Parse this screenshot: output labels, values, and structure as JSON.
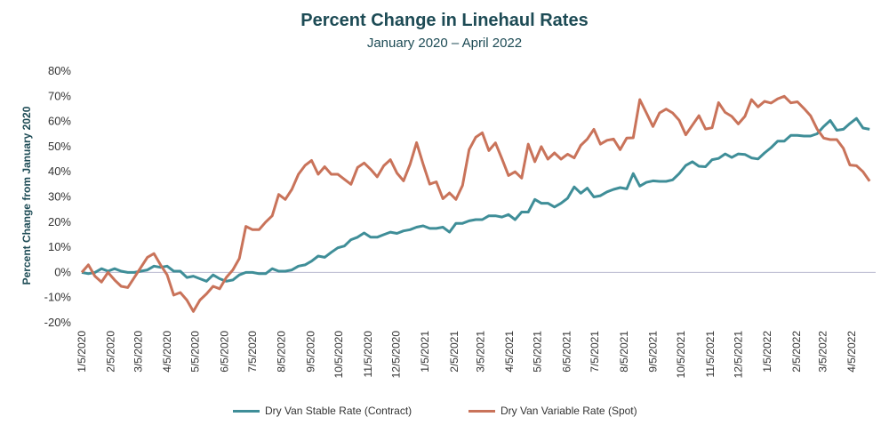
{
  "chart_data": {
    "type": "line",
    "title": "Percent Change in Linehaul Rates",
    "subtitle": "January 2020 – April 2022",
    "xlabel": "",
    "ylabel": "Percent Change from January 2020",
    "ylim": [
      -20,
      80
    ],
    "yticks": [
      "80%",
      "70%",
      "60%",
      "50%",
      "40%",
      "30%",
      "20%",
      "10%",
      "0%",
      "-10%",
      "-20%"
    ],
    "ytick_values": [
      80,
      70,
      60,
      50,
      40,
      30,
      20,
      10,
      0,
      -10,
      -20
    ],
    "xticks": [
      "1/5/2020",
      "2/5/2020",
      "3/5/2020",
      "4/5/2020",
      "5/5/2020",
      "6/5/2020",
      "7/5/2020",
      "8/5/2020",
      "9/5/2020",
      "10/5/2020",
      "11/5/2020",
      "12/5/2020",
      "1/5/2021",
      "2/5/2021",
      "3/5/2021",
      "4/5/2021",
      "5/5/2021",
      "6/5/2021",
      "7/5/2021",
      "8/5/2021",
      "9/5/2021",
      "10/5/2021",
      "11/5/2021",
      "12/5/2021",
      "1/5/2022",
      "2/5/2022",
      "3/5/2022",
      "4/5/2022"
    ],
    "grid": false,
    "zero_line": true,
    "legend_position": "bottom",
    "x": [
      "2020-01-05",
      "2020-01-12",
      "2020-01-19",
      "2020-01-26",
      "2020-02-02",
      "2020-02-09",
      "2020-02-16",
      "2020-02-23",
      "2020-03-01",
      "2020-03-08",
      "2020-03-15",
      "2020-03-22",
      "2020-03-29",
      "2020-04-05",
      "2020-04-12",
      "2020-04-19",
      "2020-04-26",
      "2020-05-03",
      "2020-05-10",
      "2020-05-17",
      "2020-05-24",
      "2020-05-31",
      "2020-06-07",
      "2020-06-14",
      "2020-06-21",
      "2020-06-28",
      "2020-07-05",
      "2020-07-12",
      "2020-07-19",
      "2020-07-26",
      "2020-08-02",
      "2020-08-09",
      "2020-08-16",
      "2020-08-23",
      "2020-08-30",
      "2020-09-06",
      "2020-09-13",
      "2020-09-20",
      "2020-09-27",
      "2020-10-04",
      "2020-10-11",
      "2020-10-18",
      "2020-10-25",
      "2020-11-01",
      "2020-11-08",
      "2020-11-15",
      "2020-11-22",
      "2020-11-29",
      "2020-12-06",
      "2020-12-13",
      "2020-12-20",
      "2020-12-27",
      "2021-01-03",
      "2021-01-10",
      "2021-01-17",
      "2021-01-24",
      "2021-01-31",
      "2021-02-07",
      "2021-02-14",
      "2021-02-21",
      "2021-02-28",
      "2021-03-07",
      "2021-03-14",
      "2021-03-21",
      "2021-03-28",
      "2021-04-04",
      "2021-04-11",
      "2021-04-18",
      "2021-04-25",
      "2021-05-02",
      "2021-05-09",
      "2021-05-16",
      "2021-05-23",
      "2021-05-30",
      "2021-06-06",
      "2021-06-13",
      "2021-06-20",
      "2021-06-27",
      "2021-07-04",
      "2021-07-11",
      "2021-07-18",
      "2021-07-25",
      "2021-08-01",
      "2021-08-08",
      "2021-08-15",
      "2021-08-22",
      "2021-08-29",
      "2021-09-05",
      "2021-09-12",
      "2021-09-19",
      "2021-09-26",
      "2021-10-03",
      "2021-10-10",
      "2021-10-17",
      "2021-10-24",
      "2021-10-31",
      "2021-11-07",
      "2021-11-14",
      "2021-11-21",
      "2021-11-28",
      "2021-12-05",
      "2021-12-12",
      "2021-12-19",
      "2021-12-26",
      "2022-01-02",
      "2022-01-09",
      "2022-01-16",
      "2022-01-23",
      "2022-01-30",
      "2022-02-06",
      "2022-02-13",
      "2022-02-20",
      "2022-02-27",
      "2022-03-06",
      "2022-03-13",
      "2022-03-20",
      "2022-03-27",
      "2022-04-03",
      "2022-04-10",
      "2022-04-17",
      "2022-04-24"
    ],
    "series": [
      {
        "name": "Dry Van Stable Rate (Contract)",
        "color": "#3f8e98",
        "values": [
          0,
          -0.5,
          0,
          1.5,
          0.5,
          1.5,
          0.5,
          0,
          0,
          0.5,
          1,
          2.5,
          2,
          2.5,
          0.5,
          0.5,
          -2,
          -1.5,
          -2.5,
          -3.5,
          -1,
          -2.5,
          -3.5,
          -3,
          -1,
          0,
          0,
          -0.5,
          -0.5,
          1.5,
          0.5,
          0.5,
          1,
          2.5,
          3,
          4.5,
          6.5,
          6,
          8,
          9.8,
          10.5,
          13,
          14,
          15.7,
          14,
          14,
          15,
          16,
          15.5,
          16.5,
          17,
          18,
          18.5,
          17.5,
          17.5,
          18,
          16,
          19.5,
          19.5,
          20.5,
          21,
          21,
          22.5,
          22.5,
          22,
          23,
          21,
          24,
          24,
          29,
          27.5,
          27.5,
          26,
          27.5,
          29.5,
          34,
          31.5,
          33.5,
          30,
          30.5,
          32,
          33,
          33.7,
          33.2,
          39.3,
          34.3,
          35.8,
          36.4,
          36.2,
          36.2,
          36.8,
          39.3,
          42.5,
          44,
          42.2,
          42,
          44.8,
          45.3,
          47.1,
          45.7,
          47.1,
          46.9,
          45.5,
          45.1,
          47.5,
          49.6,
          52.2,
          52.2,
          54.5,
          54.5,
          54.2,
          54.2,
          55.1,
          58,
          60.4,
          56.5,
          56.9,
          59.2,
          61.2,
          57.4,
          56.9
        ]
      },
      {
        "name": "Dry Van Variable Rate (Spot)",
        "color": "#c9735a",
        "values": [
          0,
          3,
          -1.5,
          -3.8,
          0,
          -3,
          -5.5,
          -6,
          -2,
          2,
          6,
          7.5,
          3,
          -1,
          -9,
          -8,
          -11,
          -15.5,
          -11,
          -8.5,
          -5.5,
          -6.5,
          -2,
          1,
          5.5,
          18.3,
          17,
          17,
          20,
          22.5,
          31,
          29,
          33,
          39,
          42.5,
          44.5,
          39,
          42,
          39,
          39,
          37,
          35,
          41.7,
          43.5,
          41,
          38,
          42.4,
          44.8,
          39.5,
          36.4,
          43,
          51.6,
          43,
          35.1,
          36,
          29.3,
          31.6,
          29,
          34.6,
          48.8,
          53.7,
          55.5,
          48.4,
          51.5,
          45.2,
          38.5,
          40,
          37.5,
          51,
          44,
          50,
          45,
          47.5,
          45,
          47,
          45.5,
          50.5,
          53,
          56.9,
          51,
          52.5,
          53,
          48.8,
          53.4,
          53.5,
          68.7,
          63.4,
          58,
          63.4,
          64.9,
          63.4,
          60.5,
          54.7,
          58.5,
          62.3,
          57,
          57.5,
          67.5,
          63.6,
          62,
          59,
          62,
          68.7,
          65.8,
          68,
          67.3,
          69,
          70,
          67.4,
          67.8,
          65.2,
          62.3,
          57,
          53.4,
          52.8,
          52.8,
          49.3,
          42.7,
          42.4,
          40,
          36.3
        ]
      }
    ]
  }
}
